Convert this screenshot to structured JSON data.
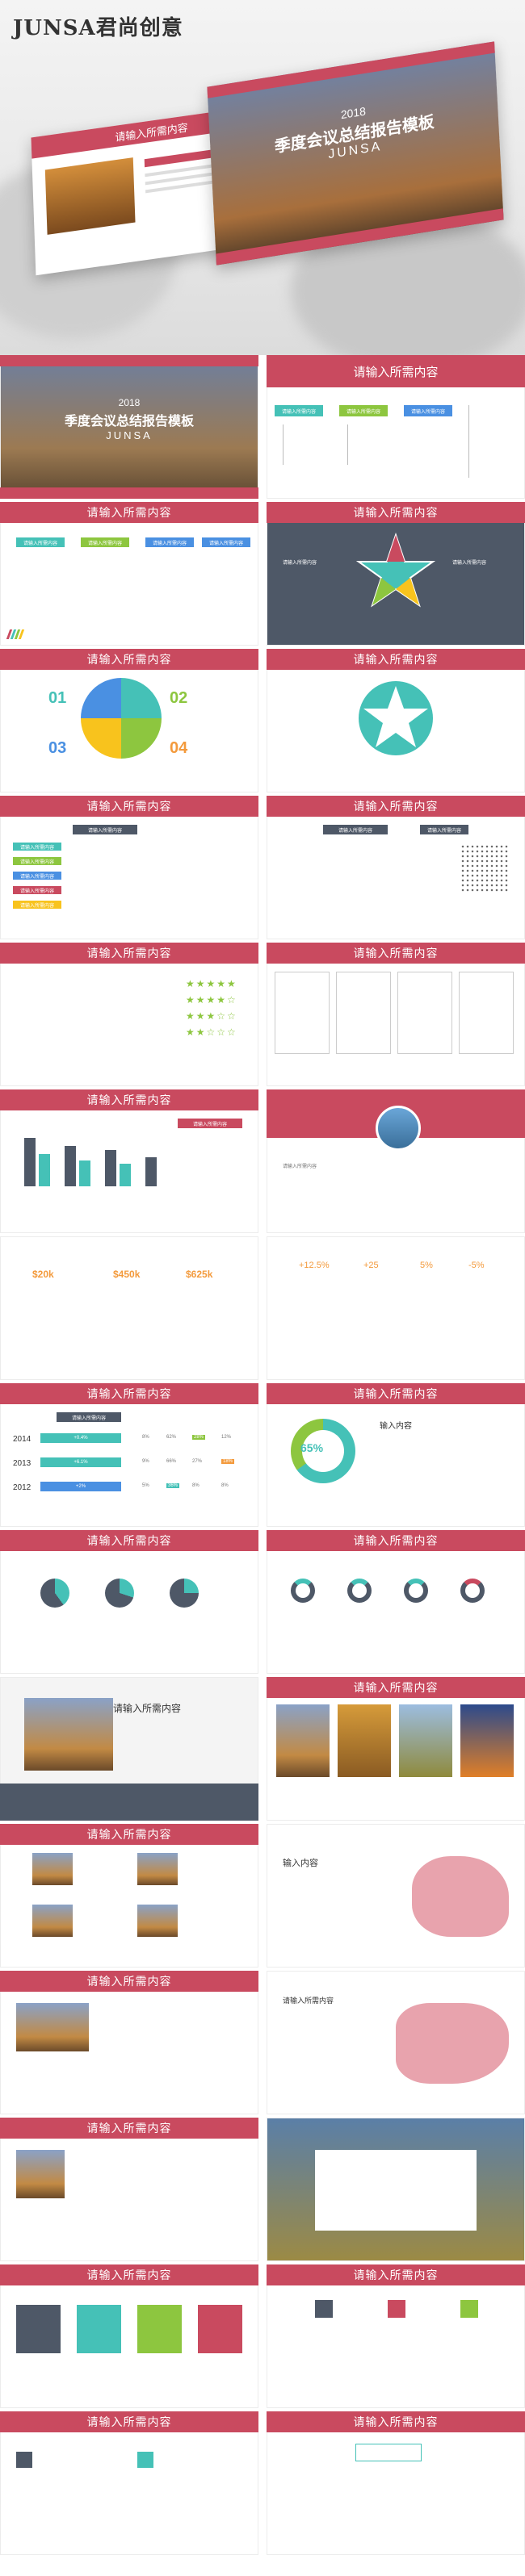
{
  "brand": "JUNSA君尚创意",
  "cover": {
    "year": "2018",
    "title": "季度会议总结报告模板",
    "sub": "JUNSA"
  },
  "slide_title": "请输入所需内容",
  "small_box": "请输入所需内容",
  "input_short": "输入内容",
  "numbers": [
    "01",
    "02",
    "03",
    "04"
  ],
  "kpi": [
    "$20k",
    "$450k",
    "$625k"
  ],
  "pct": [
    "+12.5%",
    "+25",
    "5%",
    "-5%"
  ],
  "years": [
    "2014",
    "2013",
    "2012"
  ],
  "year_rows": [
    [
      "+0.4%",
      "8%",
      "62%",
      "28%",
      "12%"
    ],
    [
      "+6.1%",
      "9%",
      "66%",
      "27%",
      "18%"
    ],
    [
      "+2%",
      "5%",
      "36%",
      "8%",
      "8%"
    ]
  ],
  "big_pct": "65%",
  "big_label": "输入内容",
  "colors": {
    "accent": "#c94a5f",
    "teal": "#45c1b7",
    "green": "#8dc63f",
    "blue": "#4a90e2",
    "gray": "#4e5867",
    "yellow": "#f8c31d",
    "orange": "#f39a3c"
  }
}
